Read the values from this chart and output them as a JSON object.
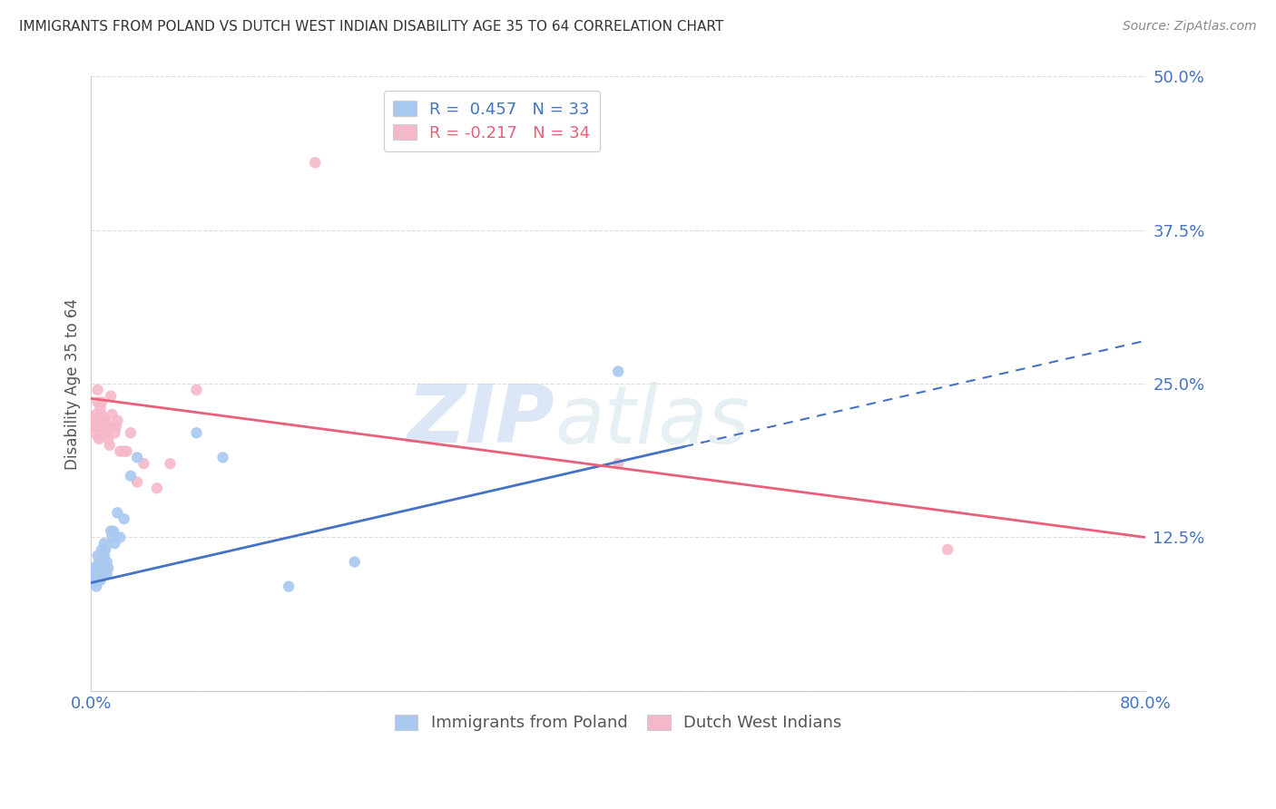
{
  "title": "IMMIGRANTS FROM POLAND VS DUTCH WEST INDIAN DISABILITY AGE 35 TO 64 CORRELATION CHART",
  "source": "Source: ZipAtlas.com",
  "ylabel": "Disability Age 35 to 64",
  "xlim": [
    0.0,
    0.8
  ],
  "ylim": [
    0.0,
    0.5
  ],
  "xticks": [
    0.0,
    0.1,
    0.2,
    0.3,
    0.4,
    0.5,
    0.6,
    0.7,
    0.8
  ],
  "yticks": [
    0.0,
    0.125,
    0.25,
    0.375,
    0.5
  ],
  "ytick_labels": [
    "",
    "12.5%",
    "25.0%",
    "37.5%",
    "50.0%"
  ],
  "xtick_labels": [
    "0.0%",
    "",
    "",
    "",
    "",
    "",
    "",
    "",
    "80.0%"
  ],
  "poland_R": 0.457,
  "poland_N": 33,
  "dutch_R": -0.217,
  "dutch_N": 34,
  "poland_color": "#a8c8f0",
  "dutch_color": "#f5b8c8",
  "poland_line_color": "#4472c4",
  "dutch_line_color": "#e8607a",
  "poland_line_y0": 0.088,
  "poland_line_y1": 0.285,
  "dutch_line_y0": 0.238,
  "dutch_line_y1": 0.125,
  "poland_x": [
    0.002,
    0.003,
    0.004,
    0.005,
    0.005,
    0.006,
    0.006,
    0.007,
    0.007,
    0.008,
    0.008,
    0.009,
    0.009,
    0.01,
    0.01,
    0.011,
    0.012,
    0.012,
    0.013,
    0.015,
    0.016,
    0.017,
    0.018,
    0.02,
    0.022,
    0.025,
    0.03,
    0.035,
    0.08,
    0.1,
    0.15,
    0.2,
    0.4
  ],
  "poland_y": [
    0.095,
    0.09,
    0.085,
    0.1,
    0.11,
    0.095,
    0.105,
    0.09,
    0.1,
    0.095,
    0.115,
    0.105,
    0.095,
    0.11,
    0.12,
    0.115,
    0.095,
    0.105,
    0.1,
    0.13,
    0.125,
    0.13,
    0.12,
    0.145,
    0.125,
    0.14,
    0.175,
    0.19,
    0.21,
    0.19,
    0.085,
    0.105,
    0.26
  ],
  "poland_sizes": [
    80,
    80,
    80,
    80,
    80,
    80,
    80,
    80,
    80,
    80,
    80,
    80,
    80,
    80,
    80,
    80,
    80,
    80,
    80,
    80,
    80,
    80,
    80,
    80,
    80,
    80,
    80,
    80,
    80,
    80,
    80,
    80,
    80
  ],
  "poland_big_idx": 0,
  "dutch_x": [
    0.002,
    0.003,
    0.004,
    0.005,
    0.005,
    0.006,
    0.006,
    0.007,
    0.008,
    0.008,
    0.009,
    0.01,
    0.011,
    0.012,
    0.013,
    0.014,
    0.015,
    0.016,
    0.017,
    0.018,
    0.019,
    0.02,
    0.022,
    0.025,
    0.027,
    0.03,
    0.035,
    0.04,
    0.05,
    0.06,
    0.08,
    0.17,
    0.4,
    0.65
  ],
  "dutch_y": [
    0.22,
    0.215,
    0.225,
    0.235,
    0.245,
    0.215,
    0.205,
    0.23,
    0.235,
    0.225,
    0.215,
    0.22,
    0.21,
    0.215,
    0.205,
    0.2,
    0.24,
    0.225,
    0.215,
    0.21,
    0.215,
    0.22,
    0.195,
    0.195,
    0.195,
    0.21,
    0.17,
    0.185,
    0.165,
    0.185,
    0.245,
    0.43,
    0.185,
    0.115
  ],
  "dutch_sizes": [
    80,
    80,
    80,
    80,
    80,
    80,
    80,
    80,
    80,
    80,
    80,
    80,
    80,
    80,
    80,
    80,
    80,
    80,
    80,
    80,
    80,
    80,
    80,
    80,
    80,
    80,
    80,
    80,
    80,
    80,
    80,
    80,
    80,
    80
  ],
  "dutch_big_idx": 5,
  "watermark_zip": "ZIP",
  "watermark_atlas": "atlas",
  "background_color": "#ffffff",
  "grid_color": "#dddddd",
  "tick_color": "#4472c4",
  "axis_label_color": "#555555",
  "title_color": "#333333"
}
